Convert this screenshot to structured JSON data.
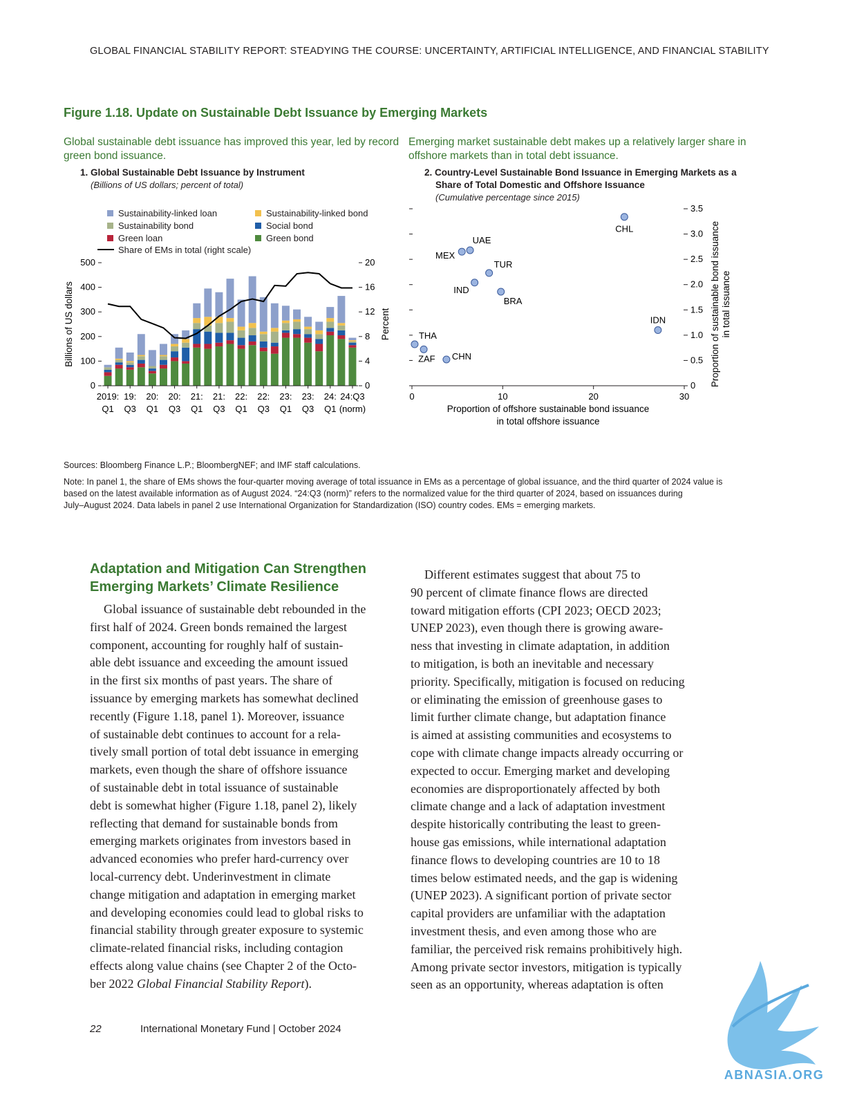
{
  "header": "GLOBAL FINANCIAL STABILITY REPORT: STEADYING THE COURSE: UNCERTAINTY, ARTIFICIAL INTELLIGENCE, AND FINANCIAL STABILITY",
  "figure": {
    "title": "Figure 1.18. Update on Sustainable Debt Issuance by Emerging Markets",
    "left_lead": [
      "Global sustainable debt issuance has improved this year, led by record",
      "green bond issuance."
    ],
    "right_lead": [
      "Emerging market sustainable debt makes up a relatively larger share in",
      "offshore markets than in total debt issuance."
    ],
    "sources": "Sources: Bloomberg Finance L.P.; BloombergNEF; and IMF staff calculations.",
    "note": [
      "Note: In panel 1, the share of EMs shows the four-quarter moving average of total issuance in EMs as a percentage of global issuance, and the third quarter of 2024 value is",
      "based on the latest available information as of August 2024. “24:Q3 (norm)” refers to the normalized value for the third quarter of 2024, based on issuances during",
      "July–August 2024. Data labels in panel 2 use International Organization for Standardization (ISO) country codes. EMs = emerging markets."
    ]
  },
  "panel1": {
    "title": "1. Global Sustainable Debt Issuance by Instrument",
    "subtitle": "(Billions of US dollars; percent of total)",
    "legend": {
      "sl_loan": "Sustainability-linked loan",
      "sl_bond": "Sustainability-linked bond",
      "sus_bond": "Sustainability bond",
      "social_bond": "Social bond",
      "green_loan": "Green loan",
      "green_bond": "Green bond",
      "share": "Share of EMs in total (right scale)"
    },
    "colors": {
      "sl_loan": "#8da0cb",
      "sl_bond": "#f2c14e",
      "sus_bond": "#a7b38a",
      "social_bond": "#1f5ea8",
      "green_loan": "#b8243a",
      "green_bond": "#4e8a3e"
    },
    "ylabel_left": "Billions of US dollars",
    "ylabel_right": "Percent",
    "x_tick_labels": [
      {
        "top": "2019:",
        "bottom": "Q1"
      },
      {
        "top": "19:",
        "bottom": "Q3"
      },
      {
        "top": "20:",
        "bottom": "Q1"
      },
      {
        "top": "20:",
        "bottom": "Q3"
      },
      {
        "top": "21:",
        "bottom": "Q1"
      },
      {
        "top": "21:",
        "bottom": "Q3"
      },
      {
        "top": "22:",
        "bottom": "Q1"
      },
      {
        "top": "22:",
        "bottom": "Q3"
      },
      {
        "top": "23:",
        "bottom": "Q1"
      },
      {
        "top": "23:",
        "bottom": "Q3"
      },
      {
        "top": "24:",
        "bottom": "Q1"
      },
      {
        "top": "24:Q3",
        "bottom": "(norm)"
      }
    ]
  },
  "panel2": {
    "title": [
      "2. Country-Level Sustainable Bond Issuance in Emerging Markets as a",
      "Share of Total Domestic and Offshore Issuance"
    ],
    "subtitle": "(Cumulative percentage since 2015)",
    "xlabel": [
      "Proportion of offshore sustainable bond issuance",
      "in total offshore issuance"
    ],
    "ylabel": [
      "Proportion of sustainable bond issuance",
      "in total issuance"
    ]
  },
  "chart_data": [
    {
      "type": "bar",
      "title": "1. Global Sustainable Debt Issuance by Instrument",
      "subtitle": "(Billions of US dollars; percent of total)",
      "ylabel": "Billions of US dollars",
      "y2label": "Percent",
      "ylim": [
        0,
        500
      ],
      "y2lim": [
        0,
        20
      ],
      "yticks": [
        0,
        100,
        200,
        300,
        400,
        500
      ],
      "y2ticks": [
        0,
        4,
        8,
        12,
        16,
        20
      ],
      "stacked": true,
      "categories": [
        "2019:Q1",
        "19:Q2",
        "19:Q3",
        "19:Q4",
        "20:Q1",
        "20:Q2",
        "20:Q3",
        "20:Q4",
        "21:Q1",
        "21:Q2",
        "21:Q3",
        "21:Q4",
        "22:Q1",
        "22:Q2",
        "22:Q3",
        "22:Q4",
        "23:Q1",
        "23:Q2",
        "23:Q3",
        "23:Q4",
        "24:Q1",
        "24:Q2",
        "24:Q3 (norm)"
      ],
      "series": [
        {
          "name": "Green bond",
          "key": "green_bond",
          "values": [
            40,
            70,
            65,
            75,
            50,
            70,
            100,
            90,
            155,
            150,
            160,
            170,
            150,
            165,
            140,
            130,
            195,
            195,
            175,
            140,
            205,
            190,
            155
          ]
        },
        {
          "name": "Green loan",
          "key": "green_loan",
          "values": [
            15,
            15,
            10,
            15,
            10,
            15,
            15,
            10,
            15,
            20,
            15,
            15,
            15,
            15,
            15,
            30,
            20,
            15,
            20,
            30,
            15,
            15,
            10
          ]
        },
        {
          "name": "Social bond",
          "key": "social_bond",
          "values": [
            10,
            10,
            10,
            15,
            10,
            20,
            25,
            55,
            60,
            50,
            40,
            30,
            30,
            25,
            25,
            15,
            10,
            20,
            15,
            20,
            15,
            20,
            10
          ]
        },
        {
          "name": "Sustainability bond",
          "key": "sus_bond",
          "values": [
            10,
            10,
            10,
            15,
            10,
            15,
            20,
            20,
            25,
            25,
            40,
            45,
            30,
            30,
            30,
            45,
            30,
            30,
            20,
            20,
            25,
            20,
            5
          ]
        },
        {
          "name": "Sustainability-linked bond",
          "key": "sl_bond",
          "values": [
            0,
            5,
            5,
            5,
            0,
            5,
            10,
            15,
            20,
            35,
            25,
            15,
            15,
            20,
            10,
            15,
            10,
            10,
            10,
            15,
            15,
            10,
            5
          ]
        },
        {
          "name": "Sustainability-linked loan",
          "key": "sl_loan",
          "values": [
            10,
            45,
            35,
            85,
            65,
            45,
            40,
            35,
            60,
            115,
            100,
            160,
            110,
            190,
            140,
            100,
            60,
            40,
            40,
            35,
            45,
            110,
            10
          ]
        }
      ],
      "line_series": {
        "name": "Share of EMs in total (right scale)",
        "axis": "right",
        "values": [
          13.3,
          12.9,
          12.9,
          10.8,
          10.1,
          9.4,
          7.8,
          7.7,
          8.5,
          9.8,
          11.3,
          12.4,
          13.7,
          14.1,
          13.7,
          16.3,
          16.2,
          18.2,
          18.4,
          18.2,
          16.6,
          15.9,
          15.9
        ]
      }
    },
    {
      "type": "scatter",
      "title": "2. Country-Level Sustainable Bond Issuance in Emerging Markets as a Share of Total Domestic and Offshore Issuance",
      "subtitle": "(Cumulative percentage since 2015)",
      "xlabel": "Proportion of offshore sustainable bond issuance in total offshore issuance",
      "ylabel": "Proportion of sustainable bond issuance in total issuance",
      "xlim": [
        0,
        30
      ],
      "ylim": [
        0,
        3.5
      ],
      "xticks": [
        0,
        10,
        20,
        30
      ],
      "yticks": [
        0,
        0.5,
        1.0,
        1.5,
        2.0,
        2.5,
        3.0,
        3.5
      ],
      "ytick_labels": [
        "0",
        "0.5",
        "1.0",
        "1.5",
        "2.0",
        "2.5",
        "3.0",
        "3.5"
      ],
      "points": [
        {
          "label": "CHL",
          "x": 23.4,
          "y": 3.34
        },
        {
          "label": "UAE",
          "x": 6.4,
          "y": 2.68
        },
        {
          "label": "MEX",
          "x": 5.5,
          "y": 2.65
        },
        {
          "label": "TUR",
          "x": 8.5,
          "y": 2.23
        },
        {
          "label": "IND",
          "x": 6.9,
          "y": 2.04
        },
        {
          "label": "BRA",
          "x": 9.8,
          "y": 1.86
        },
        {
          "label": "IDN",
          "x": 27.1,
          "y": 1.1
        },
        {
          "label": "THA",
          "x": 0.3,
          "y": 0.82
        },
        {
          "label": "ZAF",
          "x": 1.3,
          "y": 0.72
        },
        {
          "label": "CHN",
          "x": 3.8,
          "y": 0.52
        }
      ]
    }
  ],
  "section": {
    "heading": [
      "Adaptation and Mitigation Can Strengthen",
      "Emerging Markets’ Climate Resilience"
    ]
  },
  "left_column": [
    "Global issuance of sustainable debt rebounded in the",
    "first half of 2024. Green bonds remained the largest",
    "component, accounting for roughly half of sustain-",
    "able debt issuance and exceeding the amount issued",
    "in the first six months of past years. The share of",
    "issuance by emerging markets has somewhat declined",
    "recently (Figure 1.18, panel 1). Moreover, issuance",
    "of sustainable debt continues to account for a rela-",
    "tively small portion of total debt issuance in emerging",
    "markets, even though the share of offshore issuance",
    "of sustainable debt in total issuance of sustainable",
    "debt is somewhat higher (Figure 1.18, panel 2), likely",
    "reflecting that demand for sustainable bonds from",
    "emerging markets originates from investors based in",
    "advanced economies who prefer hard-currency over",
    "local-currency debt. Underinvestment in climate",
    "change mitigation and adaptation in emerging market",
    "and developing economies could lead to global risks to",
    "financial stability through greater exposure to systemic",
    "climate-related financial risks, including contagion",
    "effects along value chains (see Chapter 2 of the Octo-"
  ],
  "left_last_line": {
    "pre": "ber 2022 ",
    "italic": "Global Financial Stability Report",
    "post": ")."
  },
  "right_column": [
    "Different estimates suggest that about 75 to",
    "90 percent of climate finance flows are directed",
    "toward mitigation efforts (CPI 2023; OECD 2023;",
    "UNEP 2023), even though there is growing aware-",
    "ness that investing in climate adaptation, in addition",
    "to mitigation, is both an inevitable and necessary",
    "priority. Specifically, mitigation is focused on reducing",
    "or eliminating the emission of greenhouse gases to",
    "limit further climate change, but adaptation finance",
    "is aimed at assisting communities and ecosystems to",
    "cope with climate change impacts already occurring or",
    "expected to occur. Emerging market and developing",
    "economies are disproportionately affected by both",
    "climate change and a lack of adaptation investment",
    "despite historically contributing the least to green-",
    "house gas emissions, while international adaptation",
    "finance flows to developing countries are 10 to 18",
    "times below estimated needs, and the gap is widening",
    "(UNEP 2023). A significant portion of private sector",
    "capital providers are unfamiliar with the adaptation",
    "investment thesis, and even among those who are",
    "familiar, the perceived risk remains prohibitively high.",
    "Among private sector investors, mitigation is typically",
    "seen as an opportunity, whereas adaptation is often"
  ],
  "footer": {
    "page_number": "22",
    "text": "International Monetary Fund | October 2024"
  },
  "watermark": {
    "text": "ABNASIA.ORG",
    "color": "#5aa9de"
  }
}
